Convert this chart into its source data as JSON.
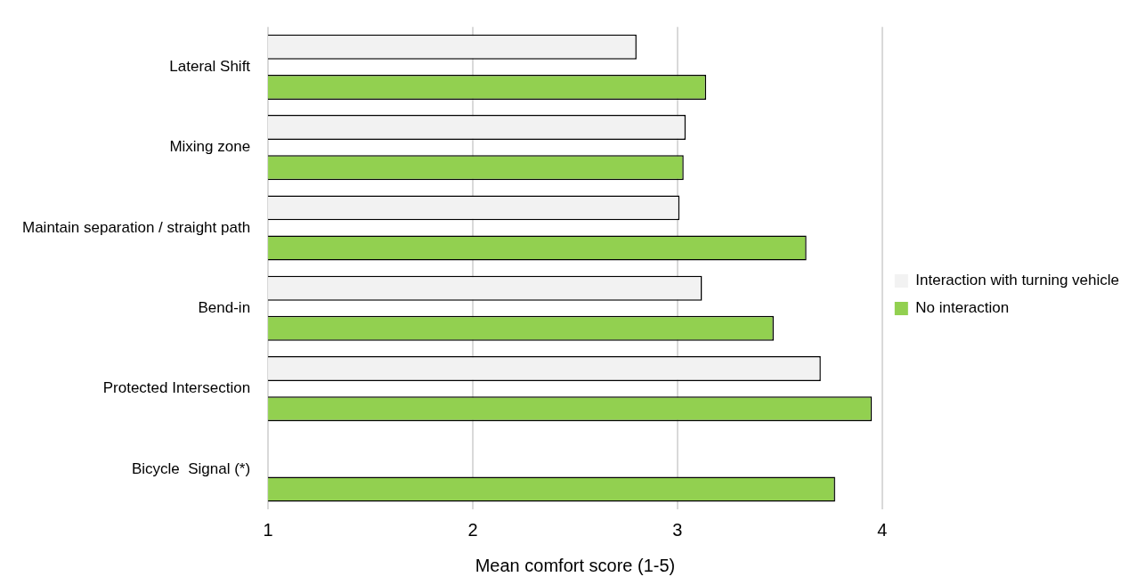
{
  "chart_data": {
    "type": "bar",
    "orientation": "horizontal",
    "categories": [
      "Lateral Shift",
      "Mixing zone",
      "Maintain separation / straight path",
      "Bend-in",
      "Protected Intersection",
      "Bicycle  Signal (*)"
    ],
    "series": [
      {
        "name": "Interaction with turning vehicle",
        "color": "#f2f2f2",
        "values": [
          2.8,
          3.04,
          3.01,
          3.12,
          3.7,
          null
        ]
      },
      {
        "name": "No interaction",
        "color": "#92d050",
        "values": [
          3.14,
          3.03,
          3.63,
          3.47,
          3.95,
          3.77
        ]
      }
    ],
    "xlabel": "Mean comfort score (1-5)",
    "xlim": [
      1,
      4
    ],
    "xticks": [
      1,
      2,
      3,
      4
    ],
    "grid": "x",
    "legend": "right"
  }
}
